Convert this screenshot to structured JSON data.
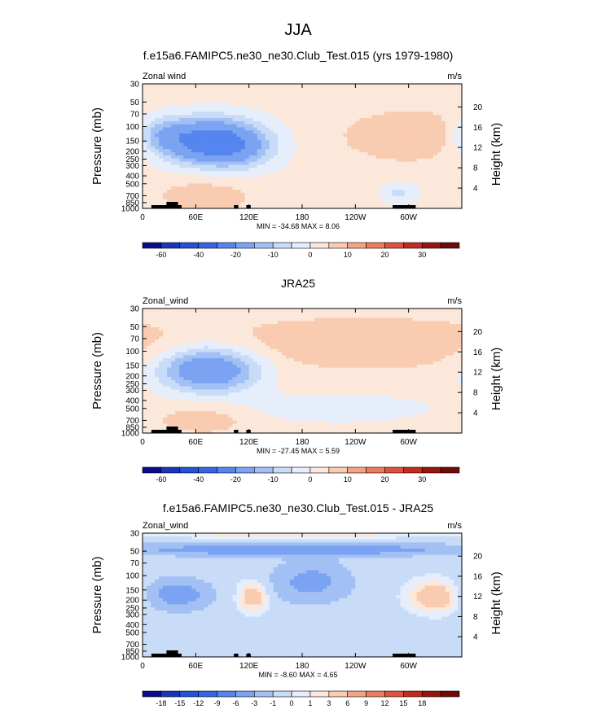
{
  "main_title": "JJA",
  "chart_data": [
    {
      "type": "heatmap",
      "title": "f.e15a6.FAMIPC5.ne30_ne30.Club_Test.015 (yrs 1979-1980)",
      "left_label": "Zonal wind",
      "units": "m/s",
      "ylabel": "Pressure (mb)",
      "ylabel_right": "Height (km)",
      "x_ticks": [
        "0",
        "60E",
        "120E",
        "180",
        "120W",
        "60W"
      ],
      "p_ticks": [
        "30",
        "50",
        "70",
        "100",
        "150",
        "200",
        "250",
        "300",
        "400",
        "500",
        "700",
        "850",
        "1000"
      ],
      "h_ticks": [
        "20",
        "16",
        "12",
        "8",
        "4"
      ],
      "stats": "MIN = -34.68   MAX =   8.06",
      "min": -34.68,
      "max": 8.06,
      "blobs": [
        {
          "lon": 75,
          "p": 150,
          "dlon": 40,
          "dlogp": 0.45,
          "amp": -34
        },
        {
          "lon": 20,
          "p": 120,
          "dlon": 20,
          "dlogp": 0.35,
          "amp": -10
        },
        {
          "lon": 110,
          "p": 200,
          "dlon": 30,
          "dlogp": 0.4,
          "amp": -8
        },
        {
          "lon": 305,
          "p": 130,
          "dlon": 55,
          "dlogp": 0.5,
          "amp": 8
        },
        {
          "lon": 70,
          "p": 700,
          "dlon": 40,
          "dlogp": 0.35,
          "amp": 6
        },
        {
          "lon": 290,
          "p": 650,
          "dlon": 15,
          "dlogp": 0.2,
          "amp": -8
        }
      ],
      "base": -3,
      "levels": [
        -70,
        -60,
        -50,
        -40,
        -30,
        -20,
        -15,
        -10,
        -5,
        0,
        5,
        10,
        15,
        20,
        25,
        30,
        35
      ]
    },
    {
      "type": "heatmap",
      "title": "JRA25",
      "left_label": "Zonal_wind",
      "units": "m/s",
      "ylabel": "Pressure (mb)",
      "ylabel_right": "Height (km)",
      "x_ticks": [
        "0",
        "60E",
        "120E",
        "180",
        "120W",
        "60W"
      ],
      "p_ticks": [
        "30",
        "50",
        "70",
        "100",
        "150",
        "200",
        "250",
        "300",
        "400",
        "500",
        "700",
        "850",
        "1000"
      ],
      "h_ticks": [
        "20",
        "16",
        "12",
        "8",
        "4"
      ],
      "stats": "MIN = -27.45   MAX =   5.59",
      "min": -27.45,
      "max": 5.59,
      "blobs": [
        {
          "lon": 75,
          "p": 170,
          "dlon": 40,
          "dlogp": 0.45,
          "amp": -27
        },
        {
          "lon": 250,
          "p": 80,
          "dlon": 110,
          "dlogp": 0.45,
          "amp": 7
        },
        {
          "lon": 70,
          "p": 650,
          "dlon": 40,
          "dlogp": 0.3,
          "amp": 5
        },
        {
          "lon": 220,
          "p": 500,
          "dlon": 80,
          "dlogp": 0.3,
          "amp": -7
        }
      ],
      "base": -2,
      "levels": [
        -70,
        -60,
        -50,
        -40,
        -30,
        -20,
        -15,
        -10,
        -5,
        0,
        5,
        10,
        15,
        20,
        25,
        30,
        35
      ]
    },
    {
      "type": "heatmap",
      "title": "f.e15a6.FAMIPC5.ne30_ne30.Club_Test.015 - JRA25",
      "left_label": "Zonal_wind",
      "units": "m/s",
      "ylabel": "Pressure (mb)",
      "ylabel_right": "Height (km)",
      "x_ticks": [
        "0",
        "60E",
        "120E",
        "180",
        "120W",
        "60W"
      ],
      "p_ticks": [
        "30",
        "50",
        "70",
        "100",
        "150",
        "200",
        "250",
        "300",
        "400",
        "500",
        "700",
        "850",
        "1000"
      ],
      "h_ticks": [
        "20",
        "16",
        "12",
        "8",
        "4"
      ],
      "stats": "MIN = -8.60   MAX =   4.65",
      "min": -8.6,
      "max": 4.65,
      "blobs": [
        {
          "lon": 170,
          "p": 48,
          "dlon": 140,
          "dlogp": 0.12,
          "amp": -8
        },
        {
          "lon": 190,
          "p": 120,
          "dlon": 30,
          "dlogp": 0.4,
          "amp": -6
        },
        {
          "lon": 40,
          "p": 170,
          "dlon": 25,
          "dlogp": 0.3,
          "amp": -7
        },
        {
          "lon": 125,
          "p": 180,
          "dlon": 12,
          "dlogp": 0.3,
          "amp": 4
        },
        {
          "lon": 330,
          "p": 180,
          "dlon": 20,
          "dlogp": 0.3,
          "amp": 4.5
        },
        {
          "lon": 170,
          "p": 32,
          "dlon": 150,
          "dlogp": 0.05,
          "amp": 2
        }
      ],
      "base": -1.5,
      "levels": [
        -21,
        -18,
        -15,
        -12,
        -9,
        -6,
        -3,
        -1,
        0,
        1,
        3,
        6,
        9,
        12,
        15,
        18,
        21
      ]
    }
  ],
  "colorbars": [
    {
      "labels": [
        "-60",
        "-40",
        "-20",
        "-10",
        "0",
        "10",
        "20",
        "30"
      ]
    },
    {
      "labels": [
        "-60",
        "-40",
        "-20",
        "-10",
        "0",
        "10",
        "20",
        "30"
      ]
    },
    {
      "labels": [
        "-18",
        "-15",
        "-12",
        "-9",
        "-6",
        "-3",
        "-1",
        "0",
        "1",
        "3",
        "6",
        "9",
        "12",
        "15",
        "18"
      ]
    }
  ],
  "palette": [
    "#0b0b8c",
    "#1936b8",
    "#2352d6",
    "#3366e6",
    "#5585ee",
    "#7aa3f2",
    "#a3c0f5",
    "#c8dcf8",
    "#e6eefb",
    "#fce8da",
    "#f9cbb0",
    "#f4a482",
    "#ec7b5c",
    "#dd523a",
    "#c32c1c",
    "#98140f",
    "#6e0a0a"
  ]
}
